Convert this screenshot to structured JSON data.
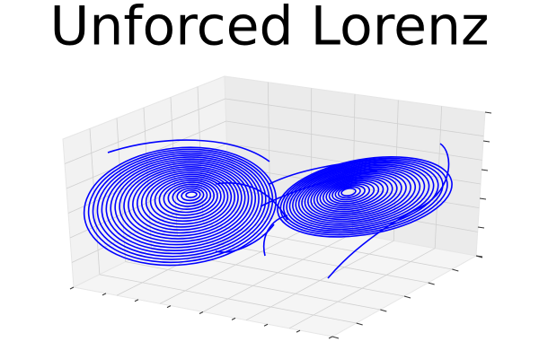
{
  "chart_data": {
    "type": "line3d",
    "title": "Unforced Lorenz"
  }
}
